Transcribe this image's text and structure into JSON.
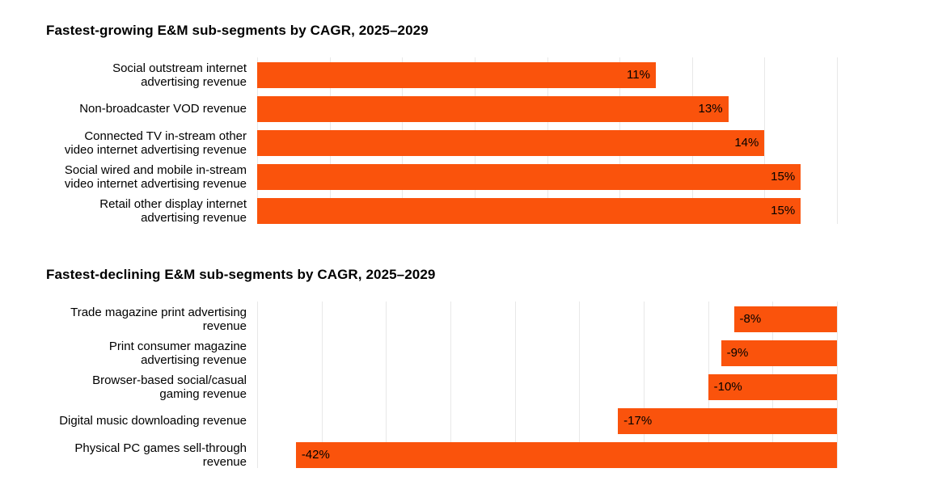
{
  "page": {
    "background": "#ffffff"
  },
  "styles": {
    "bar_color": "#FA530C",
    "grid_color": "#e8e8e8",
    "text_color": "#000000"
  },
  "chart_data": [
    {
      "type": "bar",
      "orientation": "horizontal",
      "title": "Fastest-growing E&M sub-segments by CAGR, 2025–2029",
      "categories": [
        "Social outstream internet\nadvertising revenue",
        "Non-broadcaster VOD revenue",
        "Connected TV in-stream other\nvideo internet advertising revenue",
        "Social wired and mobile in-stream\nvideo internet advertising revenue",
        "Retail other display internet\nadvertising revenue"
      ],
      "values": [
        11,
        13,
        14,
        15,
        15
      ],
      "value_labels": [
        "11%",
        "13%",
        "14%",
        "15%",
        "15%"
      ],
      "unit": "%",
      "xlim": [
        0,
        16
      ],
      "grid": true,
      "grid_interval": 2,
      "bar_anchor": "left",
      "value_label_position": "inside-end",
      "legend": "none"
    },
    {
      "type": "bar",
      "orientation": "horizontal",
      "title": "Fastest-declining E&M sub-segments by CAGR, 2025–2029",
      "categories": [
        "Trade magazine print advertising\nrevenue",
        "Print consumer magazine\nadvertising revenue",
        "Browser-based social/casual\ngaming revenue",
        "Digital music downloading revenue",
        "Physical PC games sell-through\nrevenue"
      ],
      "values": [
        -8,
        -9,
        -10,
        -17,
        -42
      ],
      "value_labels": [
        "-8%",
        "-9%",
        "-10%",
        "-17%",
        "-42%"
      ],
      "unit": "%",
      "xlim": [
        -45,
        0
      ],
      "grid": true,
      "grid_interval": 5,
      "bar_anchor": "right",
      "value_label_position": "inside-start",
      "legend": "none"
    }
  ]
}
